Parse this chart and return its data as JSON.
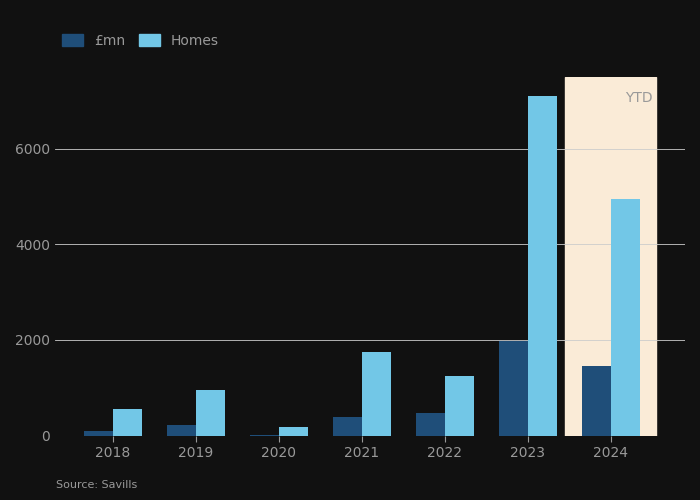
{
  "years": [
    "2018",
    "2019",
    "2020",
    "2021",
    "2022",
    "2023",
    "2024"
  ],
  "pmn_values": [
    100,
    220,
    20,
    380,
    470,
    1980,
    1450
  ],
  "homes_values": [
    560,
    950,
    175,
    1750,
    1250,
    7100,
    4950
  ],
  "pmn_color": "#1f4e79",
  "homes_color": "#72c7e7",
  "ytd_bg_color": "#faebd7",
  "ytd_label": "YTD",
  "legend_pmn": "£mn",
  "legend_homes": "Homes",
  "source_text": "Source: Savills",
  "ylim": [
    0,
    7500
  ],
  "yticks": [
    0,
    2000,
    4000,
    6000
  ],
  "bar_width": 0.35,
  "background_color": "#111111",
  "plot_bg_color": "#111111",
  "grid_color": "#cccccc",
  "tick_color": "#999999",
  "text_color": "#999999",
  "grid_linewidth": 0.6
}
